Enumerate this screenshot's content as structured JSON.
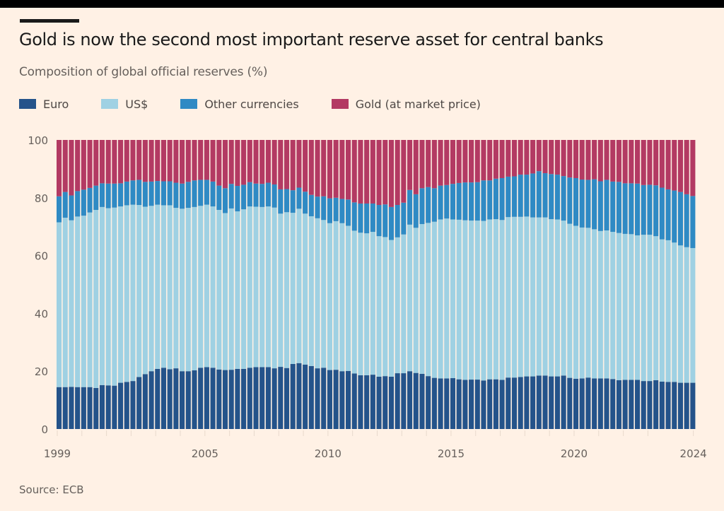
{
  "header": {
    "title": "Gold is now the second most important reserve asset for central banks",
    "subtitle": "Composition of global official reserves (%)"
  },
  "legend": [
    {
      "label": "Euro",
      "color": "#24538a"
    },
    {
      "label": "US$",
      "color": "#9fd1e3"
    },
    {
      "label": "Other currencies",
      "color": "#2f8ac4"
    },
    {
      "label": "Gold (at market price)",
      "color": "#b33a63"
    }
  ],
  "source": "Source: ECB",
  "chart_data": {
    "type": "bar",
    "stacked": true,
    "title": "Gold is now the second most important reserve asset for central banks",
    "subtitle": "Composition of global official reserves (%)",
    "xlabel": "",
    "ylabel": "%",
    "ylim": [
      0,
      100
    ],
    "yticks": [
      0,
      20,
      40,
      60,
      80,
      100
    ],
    "xtick_labels": [
      "1999",
      "2005",
      "2010",
      "2015",
      "2020",
      "2024"
    ],
    "grid": false,
    "legend_position": "top-left",
    "frequency": "quarterly, 1999 Q1 – 2024 Q4",
    "categories_start": "1999 Q1",
    "series": [
      {
        "name": "Euro",
        "color": "#24538a",
        "values": [
          14.5,
          14.5,
          14.6,
          14.5,
          14.5,
          14.5,
          14.2,
          15.2,
          15.1,
          15.0,
          16.0,
          16.3,
          16.6,
          18.0,
          19.0,
          20.0,
          20.8,
          21.2,
          20.7,
          21.0,
          20.0,
          20.0,
          20.3,
          21.2,
          21.4,
          21.2,
          20.6,
          20.4,
          20.5,
          20.8,
          20.8,
          21.2,
          21.4,
          21.4,
          21.4,
          21.0,
          21.5,
          21.1,
          22.5,
          22.8,
          22.3,
          21.8,
          21.0,
          21.2,
          20.4,
          20.5,
          20.0,
          20.1,
          19.2,
          18.6,
          18.6,
          18.8,
          18.1,
          18.3,
          18.1,
          19.3,
          19.3,
          20.0,
          19.4,
          19.1,
          18.3,
          17.7,
          17.5,
          17.5,
          17.6,
          17.2,
          17.0,
          17.1,
          17.1,
          16.8,
          17.2,
          17.2,
          17.0,
          17.8,
          17.8,
          18.0,
          18.2,
          18.2,
          18.5,
          18.5,
          18.2,
          18.2,
          18.5,
          17.7,
          17.4,
          17.5,
          17.8,
          17.5,
          17.5,
          17.5,
          17.3,
          16.9,
          17.0,
          17.0,
          17.0,
          16.6,
          16.6,
          16.9,
          16.4,
          16.3,
          16.3,
          16.0,
          16.0,
          16.0
        ]
      },
      {
        "name": "US$",
        "color": "#9fd1e3",
        "values": [
          57.0,
          58.6,
          57.6,
          59.0,
          59.3,
          60.4,
          61.6,
          61.6,
          61.3,
          61.6,
          61.0,
          61.1,
          61.0,
          59.5,
          57.9,
          57.2,
          56.8,
          56.2,
          56.7,
          55.5,
          56.2,
          56.5,
          56.5,
          56.0,
          56.2,
          55.8,
          55.2,
          54.3,
          55.8,
          54.5,
          55.2,
          55.8,
          55.5,
          55.4,
          55.6,
          55.6,
          53.0,
          53.9,
          52.3,
          53.4,
          52.2,
          51.8,
          51.9,
          51.1,
          50.8,
          51.4,
          51.2,
          50.2,
          49.4,
          49.3,
          49.1,
          49.4,
          48.6,
          48.1,
          47.3,
          47.0,
          48.0,
          50.7,
          50.2,
          51.8,
          53.0,
          54.0,
          55.0,
          55.3,
          54.9,
          55.2,
          55.2,
          55.0,
          55.0,
          55.2,
          55.3,
          55.4,
          55.3,
          55.5,
          55.6,
          55.4,
          55.3,
          55.0,
          54.7,
          54.7,
          54.4,
          54.3,
          53.6,
          53.3,
          52.9,
          52.2,
          51.8,
          51.6,
          51.0,
          51.2,
          50.9,
          50.9,
          50.5,
          50.4,
          50.0,
          50.6,
          50.6,
          49.8,
          49.2,
          49.0,
          48.2,
          47.5,
          46.9,
          46.6
        ]
      },
      {
        "name": "Other currencies",
        "color": "#2f8ac4",
        "values": [
          9.0,
          8.9,
          8.6,
          8.8,
          9.0,
          8.5,
          8.4,
          8.2,
          8.5,
          8.3,
          8.0,
          8.2,
          8.4,
          8.7,
          8.6,
          8.4,
          8.2,
          8.3,
          8.3,
          8.7,
          8.7,
          9.0,
          9.2,
          9.0,
          8.6,
          8.6,
          8.4,
          8.6,
          8.5,
          8.8,
          8.5,
          8.4,
          8.0,
          8.0,
          8.2,
          8.0,
          8.4,
          8.0,
          7.8,
          7.3,
          7.6,
          7.4,
          7.5,
          8.2,
          8.6,
          8.1,
          8.4,
          9.1,
          9.8,
          10.1,
          10.3,
          9.8,
          10.8,
          11.3,
          11.4,
          11.2,
          11.0,
          12.0,
          11.6,
          12.4,
          12.4,
          11.6,
          11.7,
          11.6,
          12.3,
          12.7,
          13.1,
          13.2,
          13.3,
          14.0,
          13.5,
          14.0,
          14.5,
          14.0,
          14.0,
          14.6,
          14.5,
          15.2,
          16.0,
          15.3,
          15.6,
          15.5,
          15.4,
          16.0,
          16.5,
          16.6,
          16.6,
          17.3,
          17.2,
          17.5,
          17.4,
          17.7,
          17.5,
          17.6,
          17.9,
          17.2,
          17.3,
          17.6,
          17.9,
          17.6,
          18.0,
          18.5,
          18.3,
          18.0
        ]
      },
      {
        "name": "Gold (at market price)",
        "color": "#b33a63",
        "values": [
          19.5,
          18.0,
          19.2,
          17.7,
          17.2,
          16.6,
          15.8,
          15.0,
          15.1,
          15.1,
          15.0,
          14.4,
          14.0,
          13.8,
          14.5,
          14.4,
          14.2,
          14.3,
          14.3,
          14.8,
          15.1,
          14.5,
          14.0,
          13.8,
          13.8,
          14.4,
          15.8,
          16.7,
          15.2,
          15.9,
          15.5,
          14.6,
          15.1,
          15.2,
          14.8,
          15.4,
          17.1,
          17.0,
          17.4,
          16.5,
          17.9,
          19.0,
          19.6,
          19.5,
          20.2,
          20.0,
          20.4,
          20.6,
          21.6,
          22.0,
          22.0,
          22.0,
          22.5,
          22.3,
          23.2,
          22.5,
          21.7,
          17.3,
          18.8,
          16.7,
          16.3,
          16.7,
          15.8,
          15.6,
          15.2,
          14.9,
          14.7,
          14.7,
          14.6,
          14.0,
          14.0,
          13.4,
          13.2,
          12.7,
          12.6,
          12.0,
          12.0,
          11.6,
          10.8,
          11.5,
          11.8,
          12.0,
          12.5,
          13.0,
          13.2,
          13.7,
          13.8,
          13.6,
          14.3,
          13.8,
          14.4,
          14.5,
          15.0,
          15.0,
          15.1,
          15.6,
          15.5,
          15.7,
          16.5,
          17.1,
          17.5,
          18.0,
          18.8,
          19.4
        ]
      }
    ]
  }
}
